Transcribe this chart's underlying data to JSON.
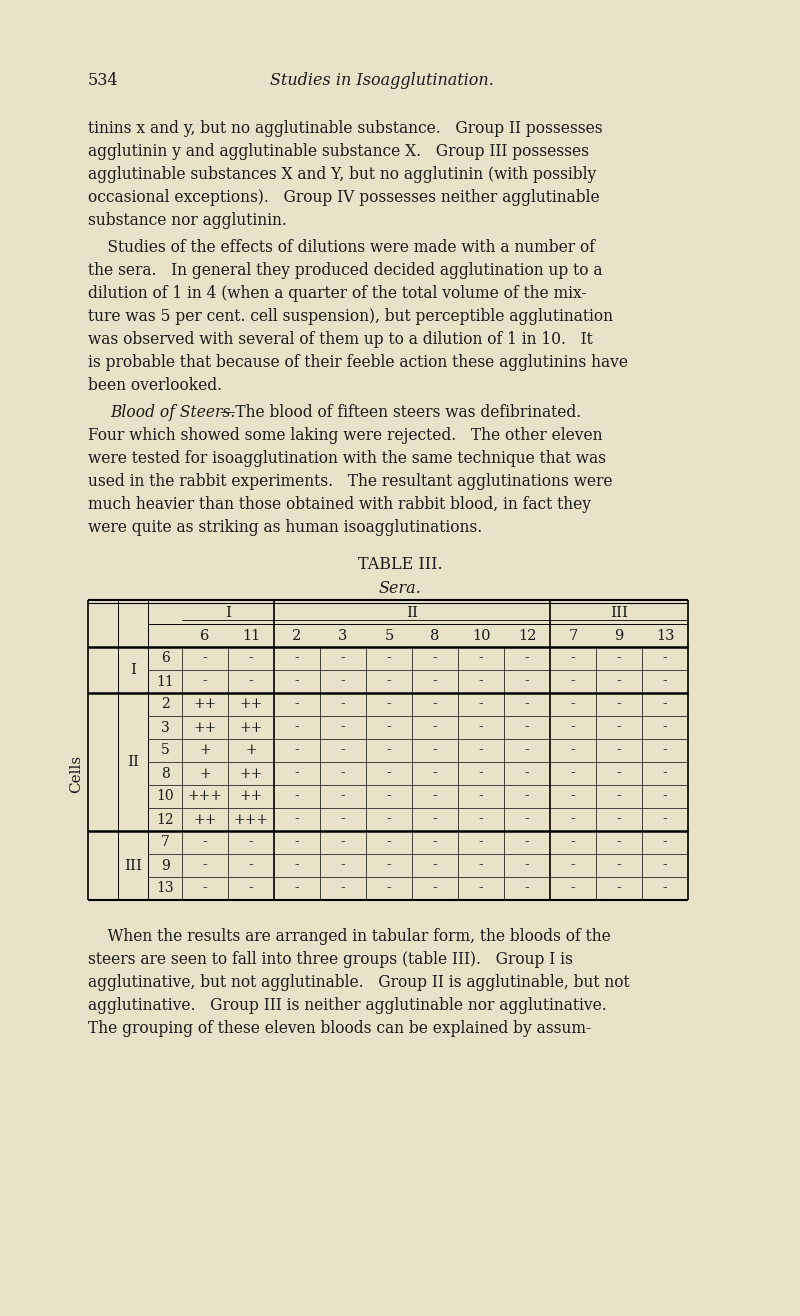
{
  "background_color": "#e8e2c8",
  "page_number": "534",
  "page_title": "Studies in Isoagglutination.",
  "table_title": "TABLE III.",
  "table_subtitle": "Sera.",
  "table_data": {
    "I_6": [
      "-",
      "-",
      "-",
      "-",
      "-",
      "-",
      "-",
      "-",
      "-",
      "-",
      "-"
    ],
    "I_11": [
      "-",
      "-",
      "-",
      "-",
      "-",
      "-",
      "-",
      "-",
      "-",
      "-",
      "-"
    ],
    "II_2": [
      "++",
      "++",
      "-",
      "-",
      "-",
      "-",
      "-",
      "-",
      "-",
      "-",
      "-"
    ],
    "II_3": [
      "++",
      "++",
      "-",
      "-",
      "-",
      "-",
      "-",
      "-",
      "-",
      "-",
      "-"
    ],
    "II_5": [
      "+",
      "+",
      "-",
      "-",
      "-",
      "-",
      "-",
      "-",
      "-",
      "-",
      "-"
    ],
    "II_8": [
      "+",
      "++",
      "-",
      "-",
      "-",
      "-",
      "-",
      "-",
      "-",
      "-",
      "-"
    ],
    "II_10": [
      "+++",
      "++",
      "-",
      "-",
      "-",
      "-",
      "-",
      "-",
      "-",
      "-",
      "-"
    ],
    "II_12": [
      "++",
      "+++",
      "-",
      "-",
      "-",
      "-",
      "-",
      "-",
      "-",
      "-",
      "-"
    ],
    "III_7": [
      "-",
      "-",
      "-",
      "-",
      "-",
      "-",
      "-",
      "-",
      "-",
      "-",
      "-"
    ],
    "III_9": [
      "-",
      "-",
      "-",
      "-",
      "-",
      "-",
      "-",
      "-",
      "-",
      "-",
      "-"
    ],
    "III_13": [
      "-",
      "-",
      "-",
      "-",
      "-",
      "-",
      "-",
      "-",
      "-",
      "-",
      "-"
    ]
  }
}
